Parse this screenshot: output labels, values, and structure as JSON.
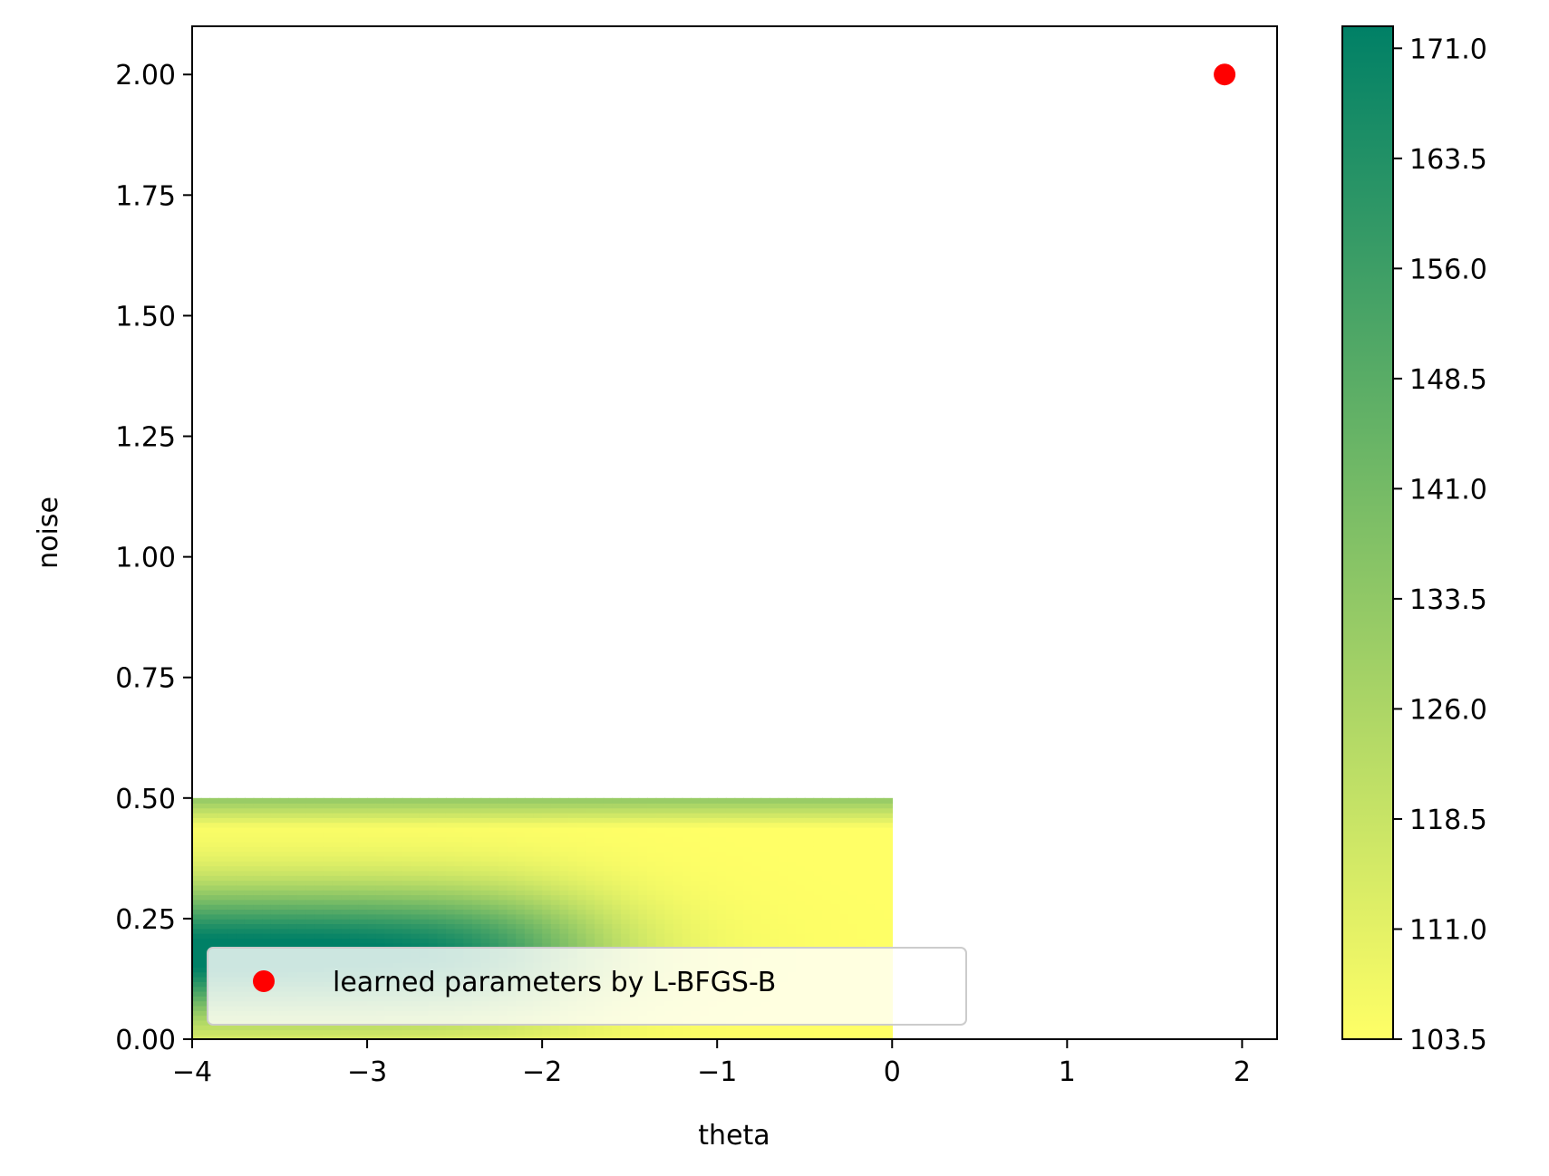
{
  "chart_data": {
    "type": "heatmap",
    "title": "",
    "xlabel": "theta",
    "ylabel": "noise",
    "xlim": [
      -4,
      2.2
    ],
    "ylim": [
      0,
      2.1
    ],
    "x_ticks": [
      -4,
      -3,
      -2,
      -1,
      0,
      1,
      2
    ],
    "x_tick_labels": [
      "−4",
      "−3",
      "−2",
      "−1",
      "0",
      "1",
      "2"
    ],
    "y_ticks": [
      0,
      0.25,
      0.5,
      0.75,
      1.0,
      1.25,
      1.5,
      1.75,
      2.0
    ],
    "y_tick_labels": [
      "0.00",
      "0.25",
      "0.50",
      "0.75",
      "1.00",
      "1.25",
      "1.50",
      "1.75",
      "2.00"
    ],
    "heatmap_extent": {
      "x": [
        -4,
        0
      ],
      "y": [
        0,
        0.5
      ]
    },
    "colorbar": {
      "min": 103.5,
      "max": 172.5,
      "ticks": [
        103.5,
        111.0,
        118.5,
        126.0,
        133.5,
        141.0,
        148.5,
        156.0,
        163.5,
        171.0
      ],
      "tick_labels": [
        "103.5",
        "111.0",
        "118.5",
        "126.0",
        "133.5",
        "141.0",
        "148.5",
        "156.0",
        "163.5",
        "171.0"
      ],
      "colormap": [
        "#ffff66",
        "#008066"
      ]
    },
    "series": [
      {
        "name": "learned parameters by L-BFGS-B",
        "type": "scatter",
        "color": "#ff0000",
        "x": [
          1.9
        ],
        "y": [
          2.0
        ]
      }
    ],
    "legend_position": "lower-left",
    "grid": false
  }
}
